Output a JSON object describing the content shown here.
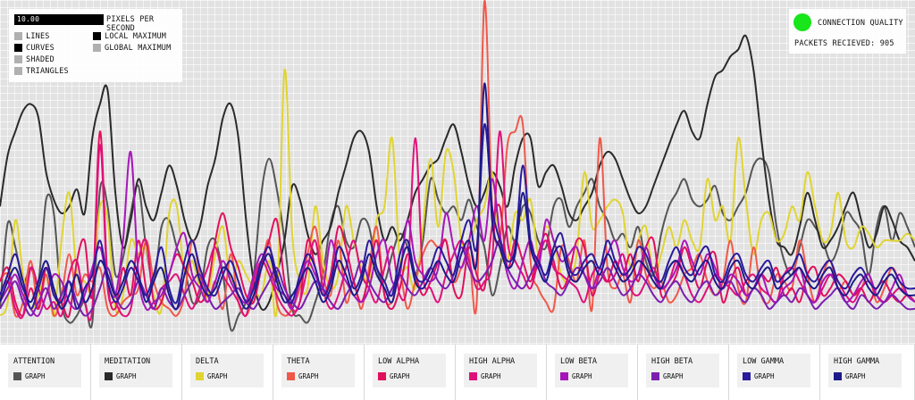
{
  "controls": {
    "pixels_per_second_value": "10.00",
    "pixels_per_second_label": "PIXELS PER SECOND",
    "render_modes": [
      {
        "label": "LINES",
        "color": "#b0b0b0"
      },
      {
        "label": "CURVES",
        "color": "#000000"
      },
      {
        "label": "SHADED",
        "color": "#b0b0b0"
      },
      {
        "label": "TRIANGLES",
        "color": "#b0b0b0"
      }
    ],
    "maximum_modes": [
      {
        "label": "LOCAL MAXIMUM",
        "color": "#000000"
      },
      {
        "label": "GLOBAL MAXIMUM",
        "color": "#b0b0b0"
      }
    ]
  },
  "connection": {
    "label": "CONNECTION QUALITY",
    "status_color": "#18e51a",
    "packets_text": "PACKETS RECIEVED: 905"
  },
  "channels": [
    {
      "name": "ATTENTION",
      "graph_label": "GRAPH",
      "color": "#555555"
    },
    {
      "name": "MEDITATION",
      "graph_label": "GRAPH",
      "color": "#2a2a2a"
    },
    {
      "name": "DELTA",
      "graph_label": "GRAPH",
      "color": "#e0d432"
    },
    {
      "name": "THETA",
      "graph_label": "GRAPH",
      "color": "#f0584a"
    },
    {
      "name": "LOW ALPHA",
      "graph_label": "GRAPH",
      "color": "#e0105c"
    },
    {
      "name": "HIGH ALPHA",
      "graph_label": "GRAPH",
      "color": "#e0107a"
    },
    {
      "name": "LOW BETA",
      "graph_label": "GRAPH",
      "color": "#a617b8"
    },
    {
      "name": "HIGH BETA",
      "graph_label": "GRAPH",
      "color": "#7a1fb0"
    },
    {
      "name": "LOW GAMMA",
      "graph_label": "GRAPH",
      "color": "#2a1a9c"
    },
    {
      "name": "HIGH GAMMA",
      "graph_label": "GRAPH",
      "color": "#1c1a8a"
    }
  ],
  "chart_data": {
    "type": "line",
    "y_max": 100,
    "series": [
      {
        "color": "#555555",
        "values": [
          10,
          35,
          28,
          18,
          22,
          18,
          42,
          38,
          12,
          6,
          8,
          12,
          6,
          45,
          40,
          20,
          25,
          38,
          46,
          28,
          18,
          34,
          36,
          28,
          22,
          12,
          14,
          28,
          30,
          20,
          4,
          8,
          12,
          20,
          44,
          54,
          45,
          30,
          10,
          8,
          6,
          12,
          20,
          35,
          40,
          30,
          28,
          36,
          34,
          22,
          18,
          26,
          32,
          28,
          20,
          30,
          48,
          42,
          38,
          40,
          36,
          42,
          34,
          28,
          14,
          22,
          34,
          30,
          40,
          38,
          30,
          28,
          40,
          42,
          34,
          40,
          44,
          48,
          40,
          36,
          30,
          32,
          28,
          34,
          24,
          20,
          32,
          40,
          44,
          48,
          42,
          40,
          42,
          46,
          38,
          36,
          40,
          44,
          52,
          54,
          50,
          34,
          24,
          20,
          28,
          36,
          34,
          30,
          24,
          28,
          38,
          36,
          32,
          20,
          34,
          40,
          30,
          38,
          34,
          28
        ]
      },
      {
        "color": "#2a2a2a",
        "values": [
          40,
          55,
          62,
          68,
          70,
          66,
          50,
          42,
          38,
          40,
          45,
          38,
          60,
          70,
          74,
          44,
          28,
          36,
          48,
          40,
          36,
          44,
          52,
          46,
          36,
          30,
          34,
          46,
          54,
          66,
          70,
          60,
          36,
          18,
          10,
          12,
          20,
          30,
          46,
          42,
          32,
          26,
          30,
          34,
          44,
          52,
          60,
          62,
          56,
          40,
          30,
          34,
          30,
          36,
          44,
          48,
          52,
          54,
          60,
          64,
          56,
          46,
          40,
          44,
          50,
          46,
          40,
          52,
          60,
          60,
          46,
          50,
          52,
          46,
          38,
          36,
          40,
          44,
          52,
          56,
          54,
          48,
          42,
          38,
          40,
          46,
          52,
          58,
          64,
          68,
          62,
          60,
          70,
          78,
          80,
          84,
          86,
          90,
          80,
          60,
          42,
          30,
          28,
          26,
          34,
          44,
          36,
          28,
          30,
          34,
          40,
          44,
          36,
          28,
          32,
          40,
          36,
          30,
          28,
          24
        ]
      },
      {
        "color": "#e0d432",
        "values": [
          8,
          12,
          36,
          20,
          10,
          14,
          20,
          8,
          30,
          44,
          20,
          18,
          16,
          40,
          36,
          10,
          14,
          30,
          26,
          28,
          14,
          10,
          38,
          40,
          20,
          24,
          16,
          14,
          26,
          34,
          18,
          24,
          20,
          16,
          14,
          24,
          10,
          80,
          32,
          18,
          16,
          40,
          24,
          16,
          20,
          40,
          30,
          22,
          18,
          36,
          40,
          60,
          24,
          22,
          16,
          34,
          54,
          34,
          56,
          50,
          30,
          28,
          36,
          40,
          50,
          28,
          24,
          38,
          36,
          42,
          26,
          34,
          30,
          20,
          18,
          26,
          50,
          34,
          36,
          40,
          42,
          38,
          22,
          30,
          34,
          20,
          26,
          34,
          28,
          36,
          30,
          28,
          48,
          36,
          40,
          30,
          60,
          42,
          26,
          36,
          38,
          30,
          32,
          40,
          36,
          50,
          40,
          30,
          32,
          44,
          30,
          28,
          34,
          32,
          28,
          30,
          30,
          30,
          32,
          30
        ]
      },
      {
        "color": "#f0584a",
        "values": [
          18,
          20,
          8,
          12,
          24,
          10,
          20,
          8,
          14,
          26,
          14,
          20,
          18,
          22,
          10,
          8,
          12,
          14,
          16,
          30,
          18,
          12,
          10,
          8,
          14,
          30,
          20,
          12,
          18,
          10,
          26,
          12,
          8,
          14,
          22,
          30,
          12,
          8,
          10,
          16,
          26,
          34,
          20,
          14,
          30,
          12,
          18,
          10,
          22,
          34,
          14,
          12,
          20,
          10,
          18,
          26,
          30,
          28,
          30,
          18,
          22,
          26,
          12,
          100,
          40,
          30,
          58,
          62,
          64,
          24,
          16,
          12,
          10,
          28,
          24,
          18,
          30,
          10,
          60,
          22,
          16,
          20,
          12,
          30,
          20,
          16,
          18,
          12,
          14,
          20,
          22,
          26,
          18,
          14,
          18,
          30,
          16,
          12,
          28,
          14,
          12,
          20,
          18,
          16,
          30,
          20,
          12,
          20,
          24,
          16,
          18,
          14,
          16,
          20,
          12,
          16,
          22,
          18,
          14,
          12
        ]
      },
      {
        "color": "#e0105c",
        "values": [
          18,
          22,
          12,
          8,
          16,
          10,
          22,
          14,
          12,
          8,
          24,
          30,
          14,
          62,
          18,
          10,
          22,
          14,
          30,
          16,
          10,
          12,
          20,
          26,
          22,
          18,
          12,
          16,
          30,
          38,
          28,
          22,
          14,
          12,
          22,
          30,
          36,
          18,
          10,
          12,
          30,
          22,
          14,
          20,
          34,
          28,
          18,
          12,
          20,
          30,
          14,
          10,
          16,
          26,
          20,
          14,
          18,
          24,
          30,
          16,
          14,
          28,
          20,
          16,
          34,
          40,
          22,
          30,
          24,
          18,
          26,
          32,
          24,
          16,
          20,
          30,
          28,
          14,
          20,
          18,
          24,
          20,
          26,
          18,
          28,
          30,
          14,
          16,
          20,
          28,
          22,
          16,
          24,
          26,
          12,
          18,
          22,
          14,
          16,
          20,
          18,
          22,
          14,
          16,
          12,
          20,
          22,
          14,
          16,
          20,
          18,
          14,
          16,
          12,
          16,
          18,
          14,
          12,
          14,
          12
        ]
      },
      {
        "color": "#e0107a",
        "values": [
          14,
          18,
          10,
          8,
          22,
          16,
          10,
          12,
          8,
          20,
          24,
          12,
          10,
          58,
          16,
          12,
          8,
          10,
          24,
          30,
          12,
          16,
          18,
          20,
          14,
          10,
          16,
          22,
          28,
          20,
          16,
          12,
          8,
          18,
          24,
          20,
          14,
          10,
          8,
          12,
          22,
          30,
          16,
          10,
          14,
          22,
          30,
          20,
          16,
          12,
          22,
          28,
          14,
          18,
          60,
          20,
          16,
          12,
          20,
          26,
          30,
          24,
          16,
          18,
          24,
          62,
          30,
          24,
          20,
          16,
          24,
          30,
          22,
          20,
          18,
          16,
          12,
          20,
          22,
          18,
          20,
          26,
          16,
          14,
          18,
          22,
          16,
          18,
          24,
          20,
          14,
          12,
          16,
          20,
          18,
          16,
          14,
          18,
          20,
          16,
          14,
          12,
          20,
          22,
          18,
          14,
          12,
          16,
          20,
          18,
          14,
          12,
          16,
          18,
          14,
          12,
          14,
          16,
          14,
          12
        ]
      },
      {
        "color": "#a617b8",
        "values": [
          12,
          16,
          20,
          14,
          10,
          8,
          14,
          20,
          18,
          12,
          10,
          14,
          22,
          28,
          18,
          14,
          30,
          56,
          20,
          10,
          12,
          14,
          20,
          28,
          32,
          20,
          16,
          12,
          18,
          24,
          18,
          14,
          12,
          20,
          26,
          22,
          16,
          14,
          10,
          18,
          24,
          20,
          16,
          30,
          22,
          18,
          14,
          12,
          16,
          26,
          30,
          18,
          20,
          36,
          24,
          20,
          18,
          22,
          38,
          28,
          22,
          30,
          40,
          30,
          48,
          32,
          20,
          16,
          24,
          30,
          22,
          36,
          30,
          24,
          26,
          28,
          20,
          16,
          22,
          26,
          30,
          22,
          18,
          20,
          28,
          20,
          16,
          18,
          22,
          30,
          24,
          20,
          26,
          22,
          16,
          20,
          18,
          14,
          16,
          20,
          14,
          12,
          16,
          18,
          22,
          14,
          12,
          18,
          20,
          16,
          12,
          14,
          18,
          20,
          14,
          12,
          16,
          20,
          14,
          12
        ]
      },
      {
        "color": "#7a1fb0",
        "values": [
          10,
          14,
          18,
          12,
          8,
          12,
          16,
          10,
          14,
          18,
          12,
          8,
          10,
          16,
          22,
          14,
          10,
          12,
          18,
          14,
          10,
          16,
          12,
          10,
          14,
          18,
          20,
          14,
          10,
          12,
          14,
          16,
          12,
          10,
          14,
          18,
          22,
          16,
          12,
          10,
          14,
          18,
          16,
          12,
          10,
          14,
          18,
          24,
          18,
          14,
          12,
          16,
          20,
          16,
          14,
          18,
          22,
          18,
          16,
          20,
          28,
          22,
          18,
          20,
          24,
          30,
          22,
          18,
          16,
          20,
          24,
          18,
          16,
          14,
          18,
          22,
          20,
          16,
          18,
          22,
          18,
          14,
          16,
          20,
          18,
          14,
          12,
          16,
          18,
          14,
          12,
          16,
          18,
          14,
          16,
          18,
          14,
          12,
          16,
          14,
          10,
          12,
          14,
          12,
          16,
          14,
          10,
          12,
          14,
          16,
          12,
          10,
          14,
          12,
          10,
          12,
          14,
          12,
          10,
          10
        ]
      },
      {
        "color": "#2a1a9c",
        "values": [
          14,
          20,
          26,
          18,
          10,
          16,
          22,
          14,
          12,
          18,
          10,
          16,
          20,
          30,
          18,
          12,
          16,
          22,
          18,
          14,
          20,
          28,
          16,
          12,
          24,
          30,
          22,
          16,
          14,
          20,
          24,
          18,
          12,
          16,
          24,
          28,
          20,
          14,
          12,
          20,
          26,
          22,
          14,
          18,
          28,
          24,
          16,
          20,
          30,
          22,
          18,
          14,
          26,
          30,
          20,
          18,
          22,
          28,
          24,
          20,
          30,
          36,
          28,
          64,
          40,
          30,
          24,
          28,
          52,
          30,
          24,
          20,
          28,
          32,
          22,
          20,
          24,
          26,
          22,
          30,
          24,
          20,
          22,
          28,
          26,
          20,
          18,
          24,
          28,
          22,
          20,
          26,
          28,
          20,
          18,
          24,
          26,
          20,
          18,
          22,
          24,
          18,
          20,
          22,
          26,
          20,
          18,
          22,
          24,
          18,
          16,
          20,
          22,
          18,
          16,
          20,
          22,
          18,
          16,
          16
        ]
      },
      {
        "color": "#1c1a8a",
        "values": [
          12,
          18,
          22,
          16,
          12,
          18,
          24,
          16,
          10,
          14,
          20,
          12,
          16,
          24,
          20,
          14,
          18,
          24,
          20,
          12,
          18,
          22,
          14,
          10,
          20,
          26,
          18,
          14,
          16,
          22,
          20,
          14,
          10,
          14,
          22,
          26,
          18,
          12,
          14,
          18,
          22,
          18,
          12,
          16,
          24,
          20,
          14,
          18,
          26,
          20,
          16,
          12,
          22,
          28,
          18,
          16,
          20,
          24,
          20,
          18,
          26,
          30,
          24,
          76,
          36,
          28,
          22,
          26,
          44,
          28,
          22,
          18,
          26,
          28,
          20,
          18,
          22,
          24,
          20,
          26,
          22,
          18,
          20,
          24,
          22,
          18,
          16,
          22,
          24,
          20,
          18,
          22,
          24,
          18,
          16,
          22,
          24,
          18,
          16,
          20,
          22,
          16,
          18,
          20,
          22,
          18,
          16,
          20,
          22,
          16,
          14,
          18,
          20,
          16,
          14,
          18,
          20,
          16,
          14,
          14
        ]
      }
    ]
  }
}
